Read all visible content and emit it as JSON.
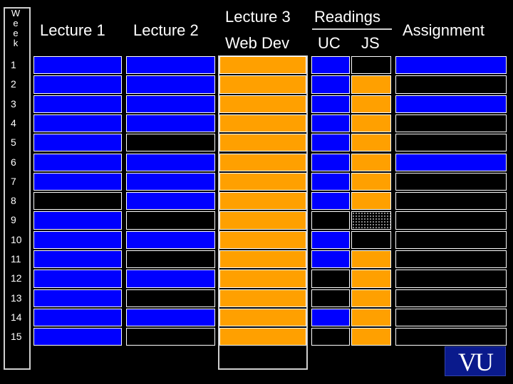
{
  "week_header": [
    "W",
    "e",
    "e",
    "k"
  ],
  "weeks": [
    "1",
    "2",
    "3",
    "4",
    "5",
    "6",
    "7",
    "8",
    "9",
    "10",
    "11",
    "12",
    "13",
    "14",
    "15"
  ],
  "headers": {
    "lecture1": "Lecture 1",
    "lecture2": "Lecture 2",
    "lecture3": "Lecture 3",
    "web_dev": "Web Dev",
    "readings": "Readings",
    "uc": "UC",
    "js": "JS",
    "assignment": "Assignment"
  },
  "logo_text": "VU",
  "colors": {
    "blue": "#0000ff",
    "orange": "#ffa000",
    "black": "#000000",
    "dotted": "dotted"
  },
  "schedule": {
    "lecture1": [
      "blue",
      "blue",
      "blue",
      "blue",
      "blue",
      "blue",
      "blue",
      "black",
      "blue",
      "blue",
      "blue",
      "blue",
      "blue",
      "blue",
      "blue"
    ],
    "lecture2": [
      "blue",
      "blue",
      "blue",
      "blue",
      "black",
      "blue",
      "blue",
      "blue",
      "black",
      "blue",
      "black",
      "blue",
      "black",
      "blue",
      "black"
    ],
    "lecture3": [
      "orange",
      "orange",
      "orange",
      "orange",
      "orange",
      "orange",
      "orange",
      "orange",
      "orange",
      "orange",
      "orange",
      "orange",
      "orange",
      "orange",
      "orange"
    ],
    "uc": [
      "blue",
      "blue",
      "blue",
      "blue",
      "blue",
      "blue",
      "blue",
      "blue",
      "black",
      "blue",
      "blue",
      "black",
      "black",
      "blue",
      "black"
    ],
    "js": [
      "black",
      "orange",
      "orange",
      "orange",
      "orange",
      "orange",
      "orange",
      "orange",
      "dotted",
      "black",
      "orange",
      "orange",
      "orange",
      "orange",
      "orange"
    ],
    "assignment": [
      "blue",
      "black",
      "blue",
      "black",
      "black",
      "blue",
      "black",
      "black",
      "black",
      "black",
      "black",
      "black",
      "black",
      "black",
      "black"
    ]
  }
}
